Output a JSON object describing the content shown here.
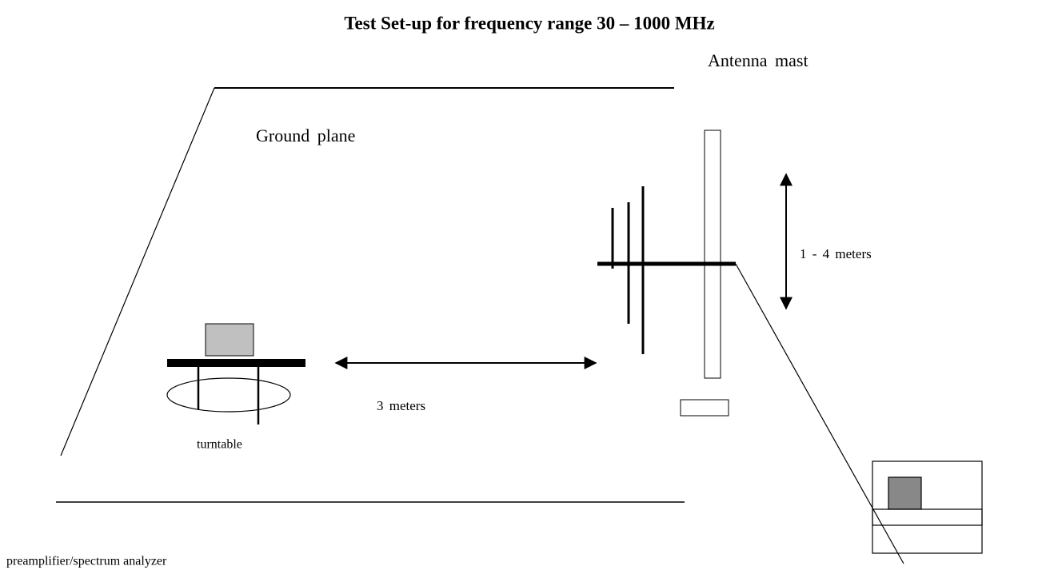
{
  "title": "Test Set-up for frequency range 30 – 1000 MHz",
  "labels": {
    "antenna_mast": "Antenna mast",
    "ground_plane": "Ground plane",
    "height_range": "1 - 4 meters",
    "distance": "3 meters",
    "turntable": "turntable",
    "receiver": "preamplifier/spectrum analyzer"
  }
}
